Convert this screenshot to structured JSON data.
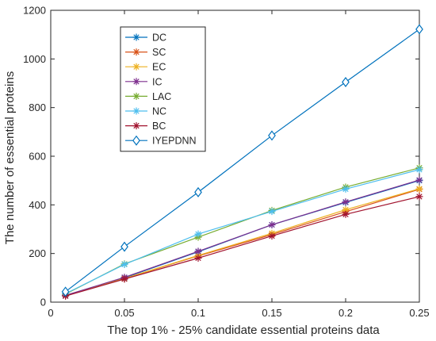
{
  "chart_data": {
    "type": "line",
    "title": "",
    "xlabel": "The top 1% - 25% candidate essential proteins data",
    "ylabel": "The number of essential proteins",
    "xlim": [
      0,
      0.25
    ],
    "ylim": [
      0,
      1200
    ],
    "xticks": [
      0,
      0.05,
      0.1,
      0.15,
      0.2,
      0.25
    ],
    "xtick_labels": [
      "0",
      "0.05",
      "0.1",
      "0.15",
      "0.2",
      "0.25"
    ],
    "yticks": [
      0,
      200,
      400,
      600,
      800,
      1000,
      1200
    ],
    "ytick_labels": [
      "0",
      "200",
      "400",
      "600",
      "800",
      "1000",
      "1200"
    ],
    "grid": false,
    "legend_position": "upper-left, inside axes",
    "x": [
      0.01,
      0.05,
      0.1,
      0.15,
      0.2,
      0.25
    ],
    "series": [
      {
        "name": "DC",
        "color": "#0072BD",
        "marker": "asterisk",
        "values": [
          28,
          100,
          207,
          318,
          410,
          500
        ]
      },
      {
        "name": "SC",
        "color": "#D95319",
        "marker": "asterisk",
        "values": [
          27,
          97,
          190,
          278,
          372,
          464
        ]
      },
      {
        "name": "EC",
        "color": "#EDB120",
        "marker": "asterisk",
        "values": [
          28,
          97,
          192,
          283,
          380,
          466
        ]
      },
      {
        "name": "IC",
        "color": "#7E2F8E",
        "marker": "asterisk",
        "values": [
          28,
          102,
          209,
          318,
          412,
          502
        ]
      },
      {
        "name": "LAC",
        "color": "#77AC30",
        "marker": "asterisk",
        "values": [
          33,
          157,
          267,
          377,
          473,
          552
        ]
      },
      {
        "name": "NC",
        "color": "#4DBEEE",
        "marker": "asterisk",
        "values": [
          35,
          155,
          280,
          373,
          465,
          545
        ]
      },
      {
        "name": "BC",
        "color": "#A2142F",
        "marker": "asterisk",
        "values": [
          25,
          95,
          181,
          272,
          361,
          434
        ]
      },
      {
        "name": "IYEPDNN",
        "color": "#0072BD",
        "marker": "diamond",
        "values": [
          43,
          228,
          452,
          685,
          905,
          1122
        ]
      }
    ]
  }
}
